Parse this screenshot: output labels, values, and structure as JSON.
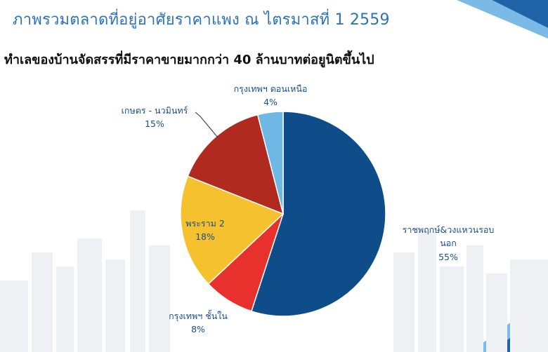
{
  "title": "ภาพรวมตลาดที่อยู่อาศัยราคาแพง ณ ไตรมาสที่ 1 2559",
  "chart_data": {
    "type": "pie",
    "title": "ทำเลของบ้านจัดสรรที่มีราคาขายมากกว่า 40 ล้านบาทต่อยูนิตขึ้นไป",
    "start_angle_deg": 0,
    "direction": "clockwise",
    "slices": [
      {
        "name": "ราชพฤกษ์&วงแหวนรอบนอก",
        "name_line1": "ราชพฤกษ์&วงแหวนรอบ",
        "name_line2": "นอก",
        "value": 55,
        "label": "55%",
        "color": "#0f4d8a"
      },
      {
        "name": "กรุงเทพฯ ชั้นใน",
        "name_line1": "กรุงเทพฯ ชั้นใน",
        "name_line2": "",
        "value": 8,
        "label": "8%",
        "color": "#e8312c"
      },
      {
        "name": "พระราม 2",
        "name_line1": "พระราม 2",
        "name_line2": "",
        "value": 18,
        "label": "18%",
        "color": "#f6c12e"
      },
      {
        "name": "เกษตร - นวมินทร์",
        "name_line1": "เกษตร - นวมินทร์",
        "name_line2": "",
        "value": 15,
        "label": "15%",
        "color": "#b12a1f"
      },
      {
        "name": "กรุงเทพฯ ตอนเหนือ",
        "name_line1": "กรุงเทพฯ ตอนเหนือ",
        "name_line2": "",
        "value": 4,
        "label": "4%",
        "color": "#6fb8e6"
      }
    ]
  }
}
